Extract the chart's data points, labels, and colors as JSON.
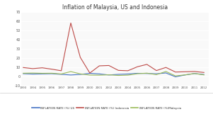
{
  "title": "Inflation of Malaysia, US and Indonesia",
  "years": [
    1993,
    1994,
    1995,
    1996,
    1997,
    1998,
    1999,
    2000,
    2001,
    2002,
    2003,
    2004,
    2005,
    2006,
    2007,
    2008,
    2009,
    2010,
    2011,
    2012
  ],
  "us": [
    3.0,
    2.6,
    2.8,
    3.0,
    2.3,
    1.6,
    2.2,
    3.4,
    2.8,
    1.6,
    2.3,
    2.7,
    3.4,
    3.2,
    2.9,
    3.8,
    -0.4,
    1.6,
    3.2,
    2.1
  ],
  "indonesia": [
    9.7,
    8.5,
    9.4,
    7.9,
    6.2,
    58.0,
    20.7,
    3.7,
    11.5,
    11.9,
    6.6,
    6.2,
    10.5,
    13.1,
    6.4,
    9.8,
    4.8,
    5.1,
    5.4,
    4.3
  ],
  "malaysia": [
    3.5,
    3.7,
    3.4,
    3.5,
    2.7,
    5.3,
    2.8,
    1.5,
    1.4,
    1.8,
    1.1,
    1.4,
    3.0,
    3.6,
    2.0,
    5.4,
    0.6,
    1.7,
    3.2,
    1.7
  ],
  "us_color": "#4472C4",
  "indonesia_color": "#BE4B48",
  "malaysia_color": "#9BBB59",
  "ylim": [
    -10,
    70
  ],
  "yticks": [
    -10,
    0,
    10,
    20,
    30,
    40,
    50,
    60,
    70
  ],
  "plot_bg": "#F9F9F9",
  "fig_bg": "#FFFFFF",
  "grid_color": "#FFFFFF",
  "legend_labels": [
    "INFLATION RATE (%) US",
    "INFLATION RATE (%) Indonesia",
    "INFLATION RATE (%)Malaysia"
  ]
}
